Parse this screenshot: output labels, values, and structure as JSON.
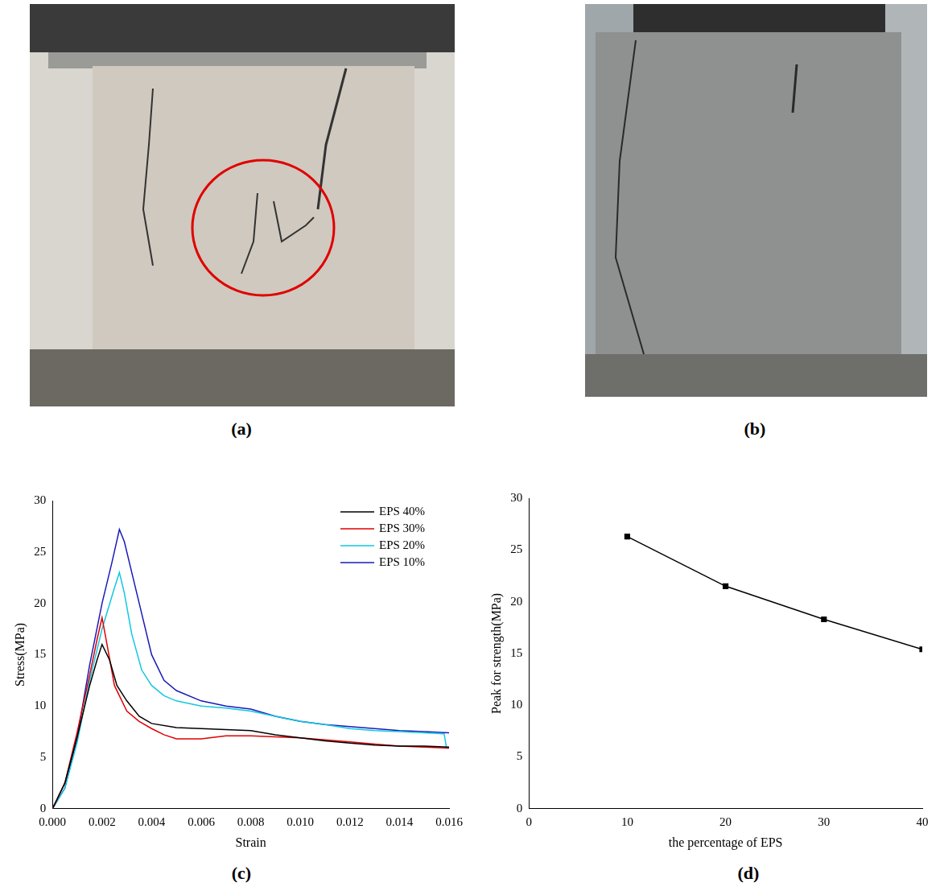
{
  "photos": [
    {
      "caption": "(a)"
    },
    {
      "caption": "(b)"
    }
  ],
  "chart_data": [
    {
      "type": "line",
      "caption": "(c)",
      "x_label": "Strain",
      "y_label": "Stress(MPa)",
      "xlim": [
        0,
        0.016
      ],
      "xticks": [
        {
          "value": 0,
          "label": "0.000"
        },
        0.002,
        0.004,
        0.006,
        0.008,
        {
          "value": 0.01,
          "label": "0.010"
        },
        0.012,
        0.014,
        0.016
      ],
      "ylim": [
        0,
        30
      ],
      "yticks": [
        0,
        5,
        10,
        15,
        20,
        25,
        30
      ],
      "grid": false,
      "legend": "upper right",
      "marker": "none",
      "line_style": "solid",
      "series": [
        {
          "name": "EPS 40%",
          "color": "#000000",
          "x": [
            0,
            0.0005,
            0.001,
            0.0015,
            0.0018,
            0.002,
            0.0023,
            0.0026,
            0.003,
            0.0035,
            0.004,
            0.005,
            0.006,
            0.007,
            0.008,
            0.009,
            0.01,
            0.011,
            0.012,
            0.013,
            0.014,
            0.015,
            0.016
          ],
          "values": [
            0,
            2.5,
            7,
            12,
            14.5,
            16,
            14.5,
            12,
            10.5,
            9,
            8.3,
            7.9,
            7.8,
            7.7,
            7.6,
            7.2,
            6.9,
            6.6,
            6.4,
            6.2,
            6.1,
            6.1,
            6
          ]
        },
        {
          "name": "EPS 30%",
          "color": "#e00000",
          "x": [
            0,
            0.0005,
            0.001,
            0.0015,
            0.0018,
            0.002,
            0.0022,
            0.0025,
            0.003,
            0.0035,
            0.004,
            0.0045,
            0.005,
            0.006,
            0.007,
            0.008,
            0.009,
            0.01,
            0.011,
            0.012,
            0.013,
            0.014,
            0.015,
            0.016
          ],
          "values": [
            0,
            2.5,
            7.5,
            13,
            16.5,
            18.6,
            16,
            12,
            9.5,
            8.5,
            7.8,
            7.2,
            6.8,
            6.8,
            7.1,
            7.1,
            7,
            6.9,
            6.7,
            6.5,
            6.3,
            6.1,
            6,
            5.9
          ]
        },
        {
          "name": "EPS 20%",
          "color": "#10c8e0",
          "x": [
            0,
            0.0005,
            0.001,
            0.0015,
            0.002,
            0.0025,
            0.0027,
            0.0029,
            0.0032,
            0.0036,
            0.004,
            0.0045,
            0.005,
            0.006,
            0.007,
            0.008,
            0.009,
            0.01,
            0.011,
            0.012,
            0.013,
            0.014,
            0.015,
            0.0158,
            0.0159,
            0.016
          ],
          "values": [
            0,
            2,
            6.5,
            12.5,
            17.5,
            21.5,
            23,
            21,
            17,
            13.5,
            12,
            11,
            10.5,
            10,
            9.8,
            9.5,
            9,
            8.5,
            8.2,
            7.8,
            7.6,
            7.5,
            7.4,
            7.3,
            5.9,
            5.9
          ]
        },
        {
          "name": "EPS 10%",
          "color": "#1a1ab8",
          "x": [
            0,
            0.0005,
            0.001,
            0.0015,
            0.002,
            0.0024,
            0.0027,
            0.0029,
            0.0032,
            0.0036,
            0.004,
            0.0045,
            0.005,
            0.006,
            0.007,
            0.008,
            0.009,
            0.01,
            0.011,
            0.012,
            0.013,
            0.014,
            0.015,
            0.016
          ],
          "values": [
            0,
            2,
            7,
            14,
            20,
            24,
            27.2,
            26,
            23,
            19,
            15,
            12.5,
            11.5,
            10.5,
            10,
            9.7,
            9,
            8.5,
            8.2,
            8,
            7.8,
            7.6,
            7.5,
            7.4
          ]
        }
      ]
    },
    {
      "type": "line",
      "caption": "(d)",
      "x_label": "the percentage of EPS",
      "y_label": "Peak for strength(MPa)",
      "xlim": [
        0,
        40
      ],
      "xticks": [
        0,
        10,
        20,
        30,
        40
      ],
      "ylim": [
        0,
        30
      ],
      "yticks": [
        0,
        5,
        10,
        15,
        20,
        25,
        30
      ],
      "grid": false,
      "marker": "square",
      "line_style": "solid",
      "series": [
        {
          "color": "#000000",
          "x": [
            10,
            20,
            30,
            40
          ],
          "values": [
            26.3,
            21.5,
            18.3,
            15.4
          ]
        }
      ]
    }
  ]
}
